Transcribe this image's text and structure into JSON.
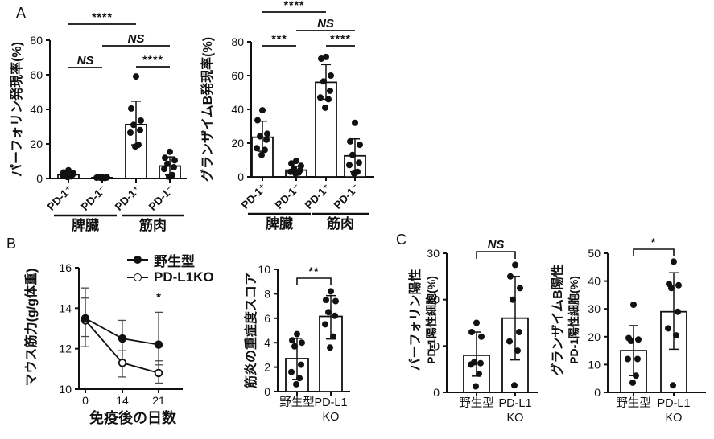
{
  "figure": {
    "panel_labels": {
      "a": "A",
      "b": "B",
      "c": "C"
    }
  },
  "colors": {
    "background": "#ffffff",
    "ink": "#111111",
    "error_bar": "#4a4a4a"
  },
  "chart_data": [
    {
      "id": "panelA_perforin",
      "panel": "A",
      "type": "bar",
      "ylabel": "パーフォリン発現率(%)",
      "ylim": [
        0,
        80
      ],
      "yticks": [
        0,
        20,
        40,
        60,
        80
      ],
      "grid": false,
      "categories": [
        [
          "PD-1⁺"
        ],
        [
          "PD-1⁻"
        ],
        [
          "PD-1⁺"
        ],
        [
          "PD-1⁻"
        ]
      ],
      "groups": [
        {
          "label": "脾臓",
          "from": 0,
          "to": 1
        },
        {
          "label": "筋肉",
          "from": 2,
          "to": 3
        }
      ],
      "values": [
        2.2,
        0.5,
        31.2,
        7.2
      ],
      "errors_low": [
        1.2,
        0.3,
        19.5,
        2.0
      ],
      "errors_high": [
        3.4,
        0.8,
        44.7,
        12.5
      ],
      "points": [
        [
          4.8,
          3.5,
          3.0,
          2.6,
          2.2,
          1.8,
          1.2,
          0.8
        ],
        [
          0.8,
          0.7,
          0.6,
          0.5,
          0.5,
          0.4,
          0.3,
          0.3
        ],
        [
          59,
          40.5,
          33.5,
          31,
          28,
          26.5,
          19.5,
          18.5
        ],
        [
          15.5,
          12,
          10.5,
          8.5,
          6.5,
          5.5,
          2,
          1
        ]
      ],
      "significance": [
        {
          "label": "****",
          "from": 0,
          "to": 2,
          "y": 30
        },
        {
          "label": "NS",
          "from": 1,
          "to": 3,
          "y": 57
        },
        {
          "label": "NS",
          "from": 0,
          "to": 1,
          "y": 84
        },
        {
          "label": "****",
          "from": 2,
          "to": 3,
          "y": 83
        }
      ]
    },
    {
      "id": "panelA_granzymeB",
      "panel": "A",
      "type": "bar",
      "ylabel": "グランザイムB発現率(%)",
      "ylim": [
        0,
        80
      ],
      "yticks": [
        0,
        20,
        40,
        60,
        80
      ],
      "grid": false,
      "categories": [
        [
          "PD-1⁺"
        ],
        [
          "PD-1⁻"
        ],
        [
          "PD-1⁺"
        ],
        [
          "PD-1⁻"
        ]
      ],
      "groups": [
        {
          "label": "脾臓",
          "from": 0,
          "to": 1
        },
        {
          "label": "筋肉",
          "from": 2,
          "to": 3
        }
      ],
      "values": [
        23.5,
        4.0,
        56,
        12.5
      ],
      "errors_low": [
        15.2,
        2.0,
        46,
        3.0
      ],
      "errors_high": [
        33,
        6.2,
        66.5,
        22.5
      ],
      "points": [
        [
          39.5,
          33.5,
          25.5,
          24,
          22,
          17,
          16,
          13
        ],
        [
          9.5,
          8,
          6.5,
          5,
          4,
          3,
          2.5,
          2
        ],
        [
          71,
          70,
          60,
          56.5,
          51,
          47,
          46,
          41
        ],
        [
          32,
          21,
          19,
          13,
          8.5,
          7,
          3,
          2
        ]
      ],
      "significance": [
        {
          "label": "****",
          "from": 0,
          "to": 2,
          "y": 15
        },
        {
          "label": "NS",
          "from": 1,
          "to": 3,
          "y": 38
        },
        {
          "label": "***",
          "from": 0,
          "to": 1,
          "y": 57
        },
        {
          "label": "****",
          "from": 2,
          "to": 3,
          "y": 57
        }
      ]
    },
    {
      "id": "panelB_grip_strength",
      "panel": "B",
      "type": "line",
      "ylabel": "マウス筋力(g/g体重)",
      "xlabel": "免疫後の日数",
      "ylim": [
        10,
        16
      ],
      "yticks": [
        10,
        12,
        14,
        16
      ],
      "x": [
        0,
        14,
        21
      ],
      "grid": false,
      "legend_position": "top-right",
      "series": [
        {
          "name": "野生型",
          "marker": "filled",
          "values": [
            13.5,
            12.5,
            12.2
          ],
          "err_low": [
            12.6,
            11.9,
            11.2
          ],
          "err_high": [
            14.5,
            13.4,
            13.8
          ]
        },
        {
          "name": "PD-L1KO",
          "marker": "open",
          "values": [
            13.4,
            11.3,
            10.8
          ],
          "err_low": [
            12.1,
            10.6,
            10.3
          ],
          "err_high": [
            15.0,
            11.9,
            11.4
          ]
        }
      ],
      "annotations": [
        {
          "label": "*",
          "x_index": 2,
          "y": 14.2
        }
      ]
    },
    {
      "id": "panelB_myositis_severity",
      "panel": "B",
      "type": "bar",
      "ylabel": "筋炎の重症度スコア",
      "ylim": [
        0,
        10
      ],
      "yticks": [
        0,
        2,
        4,
        6,
        8,
        10
      ],
      "grid": false,
      "categories": [
        [
          "野生型"
        ],
        [
          "PD-L1",
          "KO"
        ]
      ],
      "values": [
        2.7,
        6.15
      ],
      "errors_low": [
        1.0,
        4.3
      ],
      "errors_high": [
        4.35,
        7.85
      ],
      "points": [
        [
          4.7,
          4.2,
          4.0,
          3.7,
          2.2,
          1.6,
          1.1,
          0.6
        ],
        [
          8.2,
          7.5,
          7.4,
          6.5,
          6.2,
          5.5,
          4.5,
          3.6
        ]
      ],
      "significance": [
        {
          "label": "**",
          "from": 0,
          "to": 1,
          "y": 46,
          "bracket": true
        }
      ]
    },
    {
      "id": "panelC_perforin_pd1",
      "panel": "C",
      "type": "bar",
      "ylabel_lines": [
        "パーフォリン陽性",
        "PD-1陽性細胞(%)"
      ],
      "ylim": [
        0,
        30
      ],
      "yticks": [
        0,
        10,
        20,
        30
      ],
      "grid": false,
      "categories": [
        [
          "野生型"
        ],
        [
          "PD-L1",
          "KO"
        ]
      ],
      "values": [
        8,
        16
      ],
      "errors_low": [
        3.5,
        7
      ],
      "errors_high": [
        13,
        25
      ],
      "points": [
        [
          15,
          13,
          12,
          6.5,
          6.3,
          6,
          4,
          1.3
        ],
        [
          27.5,
          25,
          22.5,
          20,
          13,
          11,
          9,
          1.5
        ]
      ],
      "significance": [
        {
          "label": "NS",
          "from": 0,
          "to": 1,
          "y": 18,
          "bracket": true
        }
      ]
    },
    {
      "id": "panelC_granzymeB_pd1",
      "panel": "C",
      "type": "bar",
      "ylabel_lines": [
        "グランザイムB陽性",
        "PD-1陽性細胞(%)"
      ],
      "ylim": [
        0,
        50
      ],
      "yticks": [
        0,
        10,
        20,
        30,
        40,
        50
      ],
      "grid": false,
      "categories": [
        [
          "野生型"
        ],
        [
          "PD-L1",
          "KO"
        ]
      ],
      "values": [
        15,
        29
      ],
      "errors_low": [
        6,
        15.5
      ],
      "errors_high": [
        24,
        43
      ],
      "points": [
        [
          31.5,
          19.5,
          19,
          18.5,
          12,
          12,
          6,
          3.5
        ],
        [
          47,
          39,
          38.5,
          37.5,
          29,
          23,
          20.5,
          2.5
        ]
      ],
      "significance": [
        {
          "label": "*",
          "from": 0,
          "to": 1,
          "y": 15,
          "bracket": true
        }
      ]
    }
  ]
}
